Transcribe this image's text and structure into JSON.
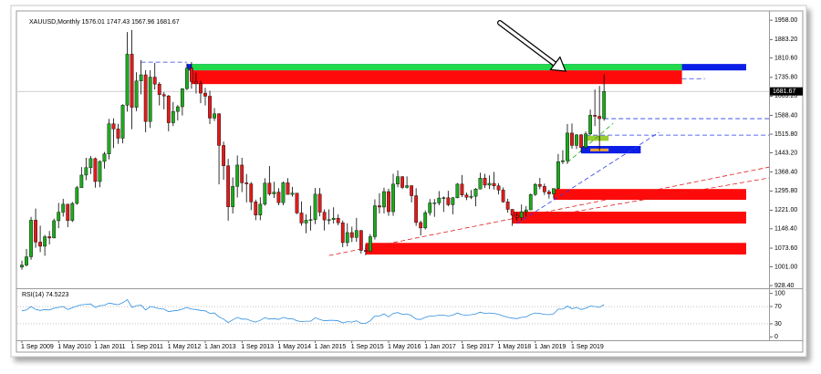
{
  "chart_data": {
    "type": "candlestick",
    "symbol": "XAUUSD,Monthly",
    "up_color": "#1fa81f",
    "down_color": "#e01b1b",
    "open": [
      1000,
      1008,
      1040,
      1182,
      1097,
      1081,
      1118,
      1113,
      1180,
      1213,
      1244,
      1181,
      1247,
      1308,
      1357,
      1386,
      1421,
      1332,
      1410,
      1439,
      1556,
      1536,
      1500,
      1628,
      1826,
      1620,
      1722,
      1746,
      1565,
      1737,
      1710,
      1669,
      1664,
      1560,
      1604,
      1622,
      1692,
      1772,
      1720,
      1712,
      1675,
      1663,
      1578,
      1595,
      1472,
      1393,
      1234,
      1313,
      1396,
      1327,
      1323,
      1253,
      1202,
      1244,
      1326,
      1284,
      1291,
      1250,
      1327,
      1282,
      1287,
      1210,
      1171,
      1182,
      1184,
      1283,
      1213,
      1183,
      1184,
      1190,
      1172,
      1095,
      1134,
      1115,
      1142,
      1065,
      1061,
      1118,
      1238,
      1233,
      1293,
      1215,
      1322,
      1351,
      1309,
      1316,
      1277,
      1173,
      1152,
      1211,
      1249,
      1249,
      1268,
      1269,
      1242,
      1269,
      1322,
      1280,
      1271,
      1275,
      1303,
      1345,
      1318,
      1325,
      1315,
      1299,
      1253,
      1224,
      1201,
      1192,
      1215,
      1222,
      1282,
      1321,
      1313,
      1292,
      1284,
      1305,
      1409,
      1413,
      1520,
      1472,
      1513,
      1464,
      1517,
      1589,
      1585,
      1576.01
    ],
    "high": [
      1025,
      1070,
      1195,
      1227,
      1161,
      1125,
      1140,
      1188,
      1249,
      1265,
      1245,
      1253,
      1315,
      1388,
      1424,
      1431,
      1425,
      1414,
      1447,
      1575,
      1577,
      1556,
      1632,
      1912,
      1920,
      1756,
      1803,
      1764,
      1764,
      1792,
      1718,
      1679,
      1668,
      1640,
      1629,
      1694,
      1790,
      1796,
      1754,
      1723,
      1695,
      1684,
      1617,
      1597,
      1487,
      1420,
      1348,
      1433,
      1424,
      1361,
      1330,
      1262,
      1271,
      1345,
      1392,
      1331,
      1306,
      1332,
      1345,
      1311,
      1287,
      1255,
      1205,
      1238,
      1307,
      1307,
      1224,
      1224,
      1232,
      1205,
      1181,
      1170,
      1157,
      1191,
      1144,
      1089,
      1128,
      1263,
      1287,
      1308,
      1304,
      1362,
      1375,
      1353,
      1352,
      1317,
      1306,
      1180,
      1220,
      1264,
      1264,
      1295,
      1274,
      1296,
      1272,
      1326,
      1357,
      1289,
      1299,
      1307,
      1366,
      1362,
      1356,
      1369,
      1326,
      1309,
      1265,
      1225,
      1214,
      1243,
      1237,
      1285,
      1326,
      1346,
      1324,
      1300,
      1305,
      1439,
      1453,
      1555,
      1557,
      1516,
      1517,
      1526,
      1611,
      1689,
      1703,
      1747.43
    ],
    "low": [
      990,
      1003,
      1028,
      1075,
      1058,
      1044,
      1088,
      1112,
      1151,
      1196,
      1155,
      1175,
      1242,
      1315,
      1337,
      1361,
      1308,
      1310,
      1382,
      1418,
      1462,
      1478,
      1480,
      1603,
      1535,
      1605,
      1670,
      1523,
      1540,
      1689,
      1627,
      1612,
      1527,
      1547,
      1569,
      1588,
      1687,
      1692,
      1673,
      1636,
      1627,
      1555,
      1567,
      1321,
      1339,
      1180,
      1208,
      1270,
      1291,
      1251,
      1221,
      1182,
      1182,
      1238,
      1277,
      1268,
      1240,
      1240,
      1281,
      1273,
      1206,
      1161,
      1131,
      1142,
      1167,
      1197,
      1142,
      1166,
      1169,
      1162,
      1077,
      1080,
      1097,
      1098,
      1052,
      1046,
      1061,
      1107,
      1208,
      1208,
      1199,
      1199,
      1310,
      1303,
      1305,
      1251,
      1160,
      1123,
      1146,
      1200,
      1195,
      1240,
      1214,
      1236,
      1205,
      1267,
      1272,
      1260,
      1264,
      1236,
      1302,
      1307,
      1303,
      1301,
      1282,
      1250,
      1211,
      1160,
      1180,
      1182,
      1196,
      1221,
      1276,
      1302,
      1280,
      1266,
      1266,
      1301,
      1400,
      1400,
      1459,
      1458,
      1445,
      1459,
      1512,
      1547,
      1451,
      1567.96
    ],
    "close": [
      1008,
      1040,
      1182,
      1097,
      1081,
      1118,
      1113,
      1180,
      1213,
      1244,
      1181,
      1247,
      1308,
      1357,
      1386,
      1421,
      1332,
      1410,
      1439,
      1556,
      1536,
      1500,
      1628,
      1826,
      1620,
      1722,
      1746,
      1565,
      1737,
      1710,
      1669,
      1664,
      1560,
      1604,
      1622,
      1692,
      1772,
      1720,
      1712,
      1675,
      1663,
      1578,
      1595,
      1472,
      1393,
      1234,
      1313,
      1396,
      1327,
      1323,
      1253,
      1202,
      1244,
      1326,
      1284,
      1291,
      1250,
      1327,
      1282,
      1287,
      1210,
      1171,
      1182,
      1184,
      1283,
      1213,
      1183,
      1184,
      1190,
      1172,
      1095,
      1134,
      1115,
      1142,
      1065,
      1061,
      1118,
      1238,
      1233,
      1293,
      1215,
      1322,
      1351,
      1309,
      1316,
      1277,
      1173,
      1152,
      1211,
      1249,
      1249,
      1268,
      1269,
      1242,
      1269,
      1322,
      1280,
      1271,
      1275,
      1303,
      1345,
      1318,
      1325,
      1315,
      1299,
      1253,
      1224,
      1201,
      1192,
      1215,
      1222,
      1282,
      1321,
      1313,
      1292,
      1284,
      1305,
      1409,
      1413,
      1520,
      1472,
      1513,
      1464,
      1517,
      1589,
      1585,
      1576,
      1681.67
    ],
    "ylim": [
      918,
      1976
    ],
    "yticks": [
      {
        "value": 1958,
        "label": "1958.00"
      },
      {
        "value": 1883.2,
        "label": "1883.20"
      },
      {
        "value": 1810.6,
        "label": "1810.60"
      },
      {
        "value": 1735.8,
        "label": "1735.80"
      },
      {
        "value": 1663.2,
        "label": "1663.20"
      },
      {
        "value": 1588.4,
        "label": "1588.40"
      },
      {
        "value": 1515.8,
        "label": "1515.80"
      },
      {
        "value": 1443.2,
        "label": "1443.20"
      },
      {
        "value": 1368.4,
        "label": "1368.40"
      },
      {
        "value": 1295.8,
        "label": "1295.80"
      },
      {
        "value": 1221,
        "label": "1221.00"
      },
      {
        "value": 1148.4,
        "label": "1148.40"
      },
      {
        "value": 1073.6,
        "label": "1073.60"
      },
      {
        "value": 1001,
        "label": "1001.00"
      },
      {
        "value": 928.4,
        "label": "928.40"
      }
    ],
    "xticks": [
      {
        "value": 0,
        "label": "1 Sep 2009"
      },
      {
        "value": 8,
        "label": "1 May 2010"
      },
      {
        "value": 16,
        "label": "1 Jan 2011"
      },
      {
        "value": 24,
        "label": "1 Sep 2011"
      },
      {
        "value": 32,
        "label": "1 May 2012"
      },
      {
        "value": 40,
        "label": "1 Jan 2013"
      },
      {
        "value": 48,
        "label": "1 Sep 2013"
      },
      {
        "value": 56,
        "label": "1 May 2014"
      },
      {
        "value": 64,
        "label": "1 Jan 2015"
      },
      {
        "value": 72,
        "label": "1 Sep 2015"
      },
      {
        "value": 80,
        "label": "1 May 2016"
      },
      {
        "value": 88,
        "label": "1 Jan 2017"
      },
      {
        "value": 96,
        "label": "1 Sep 2017"
      },
      {
        "value": 104,
        "label": "1 May 2018"
      },
      {
        "value": 112,
        "label": "1 Jan 2019"
      },
      {
        "value": 120,
        "label": "1 Sep 2019"
      }
    ],
    "zones": [
      {
        "x0": 36,
        "x1": 158,
        "low": 1763,
        "high": 1788,
        "color": "#0a1ee6"
      },
      {
        "x0": 37,
        "x1": 144,
        "low": 1763,
        "high": 1788,
        "color": "#22d94c"
      },
      {
        "x0": 37,
        "x1": 144,
        "low": 1710,
        "high": 1763,
        "color": "#ff0a0a"
      },
      {
        "x0": 116,
        "x1": 158,
        "low": 1261,
        "high": 1303,
        "color": "#ff0a0a"
      },
      {
        "x0": 107,
        "x1": 158,
        "low": 1169,
        "high": 1215,
        "color": "#ff0a0a"
      },
      {
        "x0": 75,
        "x1": 158,
        "low": 1049,
        "high": 1094,
        "color": "#ff0a0a"
      },
      {
        "x0": 122,
        "x1": 135,
        "low": 1441,
        "high": 1470,
        "color": "#0a1ee6"
      },
      {
        "x0": 124,
        "x1": 128,
        "low": 1449,
        "high": 1460,
        "color": "#e8a33c"
      },
      {
        "x0": 123,
        "x1": 128,
        "low": 1490,
        "high": 1510,
        "color": "#9acd32"
      }
    ],
    "lines": [
      {
        "x0": 67,
        "y0": 1045,
        "x1": 163,
        "y1": 1388,
        "color": "#e01b1b"
      },
      {
        "x0": 108,
        "y0": 1176,
        "x1": 163,
        "y1": 1346,
        "color": "#e01b1b"
      },
      {
        "x0": 108,
        "y0": 1169,
        "x1": 139,
        "y1": 1523,
        "color": "#2a3ee6"
      },
      {
        "x0": 119,
        "y0": 1406,
        "x1": 129,
        "y1": 1558,
        "color": "#1fa81f"
      },
      {
        "x0": 127,
        "y0": 1576,
        "x1": 163,
        "y1": 1576,
        "color": "#2a3ee6"
      },
      {
        "x0": 123,
        "y0": 1512,
        "x1": 163,
        "y1": 1512,
        "color": "#2a3ee6"
      },
      {
        "x0": 26,
        "y0": 1795,
        "x1": 36,
        "y1": 1795,
        "color": "#2a3ee6"
      },
      {
        "x0": 144,
        "y0": 1731,
        "x1": 149,
        "y1": 1731,
        "color": "#2a3ee6"
      }
    ],
    "rsi": {
      "name": "RSI(14)",
      "color": "#2f8fe0",
      "ylim": [
        -8,
        108
      ],
      "yticks": [
        100,
        70,
        30,
        0
      ],
      "levels": [
        70,
        30
      ],
      "values": [
        60,
        62,
        70,
        63,
        61,
        63,
        62,
        66,
        68,
        70,
        63,
        67,
        71,
        74,
        75,
        76,
        68,
        72,
        73,
        78,
        76,
        74,
        79,
        86,
        68,
        72,
        73,
        62,
        70,
        68,
        65,
        64,
        58,
        60,
        61,
        64,
        68,
        64,
        63,
        61,
        60,
        54,
        55,
        46,
        41,
        33,
        39,
        45,
        41,
        41,
        37,
        34,
        38,
        44,
        41,
        42,
        40,
        45,
        42,
        42,
        37,
        35,
        36,
        36,
        44,
        40,
        37,
        38,
        38,
        37,
        32,
        35,
        34,
        37,
        31,
        31,
        37,
        48,
        48,
        53,
        46,
        54,
        56,
        52,
        53,
        49,
        41,
        40,
        45,
        48,
        48,
        50,
        50,
        48,
        50,
        55,
        51,
        50,
        51,
        53,
        57,
        54,
        55,
        54,
        52,
        48,
        45,
        43,
        42,
        45,
        46,
        52,
        55,
        54,
        52,
        51,
        53,
        64,
        64,
        71,
        65,
        68,
        63,
        66,
        71,
        70,
        68,
        74.5223
      ]
    }
  }
}
